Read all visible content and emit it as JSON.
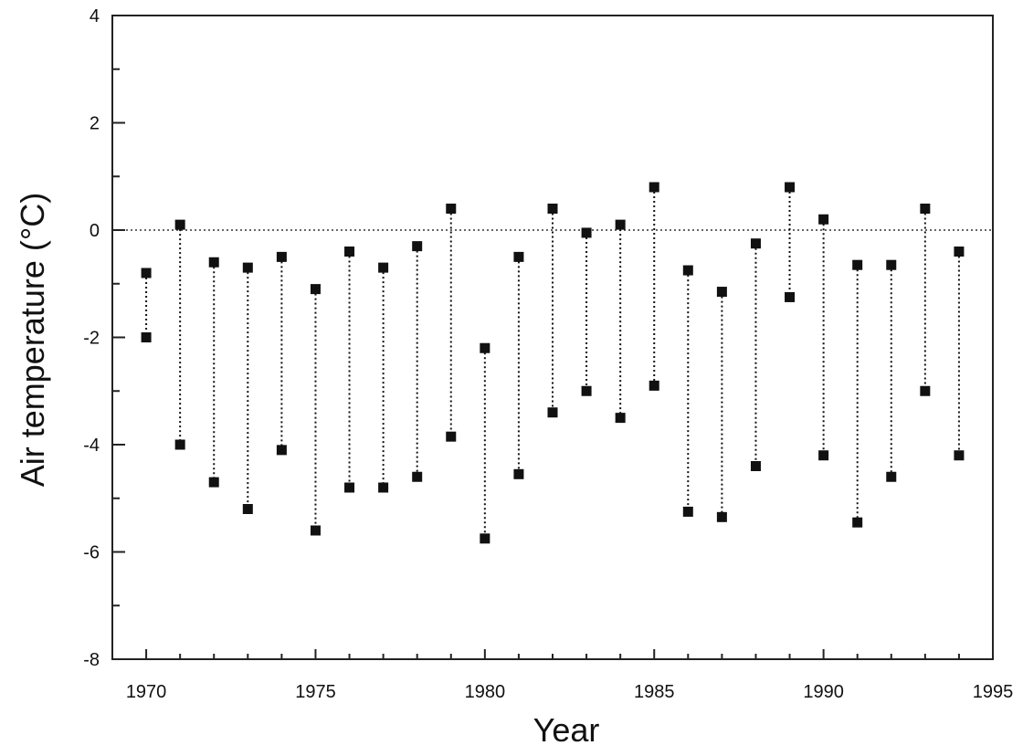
{
  "chart_data": {
    "type": "scatter",
    "title": "",
    "xlabel": "Year",
    "ylabel": "Air temperature  (°C)",
    "xlim": [
      1969,
      1995
    ],
    "ylim": [
      -8,
      4
    ],
    "x_ticks": [
      1970,
      1975,
      1980,
      1985,
      1990,
      1995
    ],
    "y_ticks": [
      -8,
      -6,
      -4,
      -2,
      0,
      2,
      4
    ],
    "reference_line": 0,
    "grid": false,
    "legend": "none",
    "marker_color": "#111111",
    "x": [
      1970,
      1971,
      1972,
      1973,
      1974,
      1975,
      1976,
      1977,
      1978,
      1979,
      1980,
      1981,
      1982,
      1983,
      1984,
      1985,
      1986,
      1987,
      1988,
      1989,
      1990,
      1991,
      1992,
      1993,
      1994
    ],
    "series": [
      {
        "values": [
          -0.8,
          0.1,
          -0.6,
          -0.7,
          -0.5,
          -1.1,
          -0.4,
          -0.7,
          -0.3,
          0.4,
          -2.2,
          -0.5,
          0.4,
          -0.05,
          0.1,
          0.8,
          -0.75,
          -1.15,
          -0.25,
          0.8,
          0.2,
          -0.65,
          -0.65,
          0.4,
          -0.4
        ]
      },
      {
        "values": [
          -2.0,
          -4.0,
          -4.7,
          -5.2,
          -4.1,
          -5.6,
          -4.8,
          -4.8,
          -4.6,
          -3.85,
          -5.75,
          -4.55,
          -3.4,
          -3.0,
          -3.5,
          -2.9,
          -5.25,
          -5.35,
          -4.4,
          -1.25,
          -4.2,
          -5.45,
          -4.6,
          -3.0,
          -4.2
        ]
      }
    ]
  }
}
